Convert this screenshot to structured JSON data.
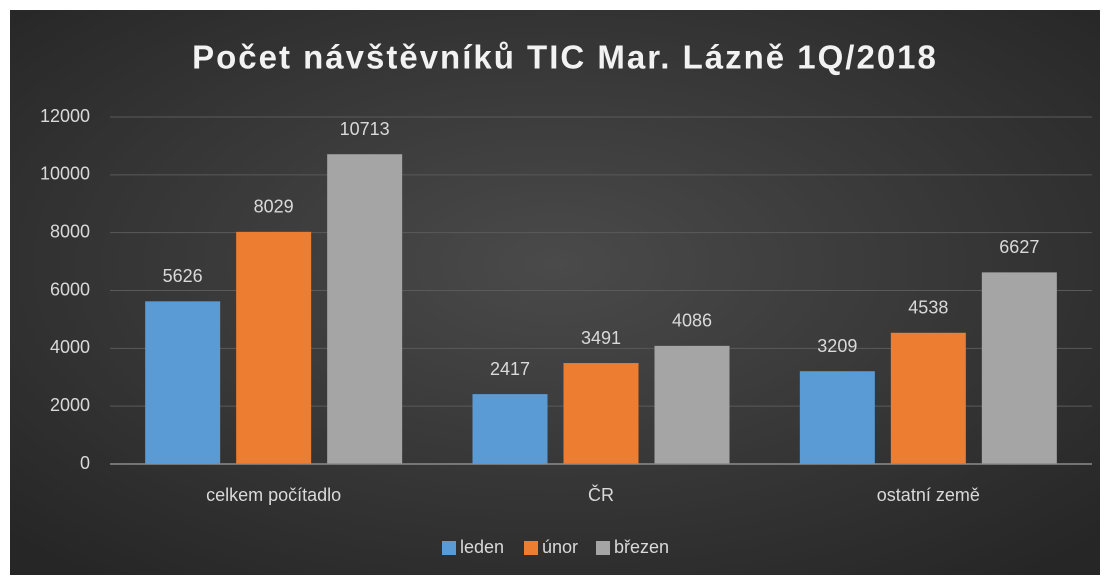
{
  "chart_data": {
    "type": "bar",
    "title": "Počet návštěvníků TIC Mar. Lázně 1Q/2018",
    "categories": [
      "celkem počítadlo",
      "ČR",
      "ostatní země"
    ],
    "series": [
      {
        "name": "leden",
        "color": "#5b9bd5",
        "values": [
          5626,
          2417,
          3209
        ]
      },
      {
        "name": "únor",
        "color": "#ed7d31",
        "values": [
          8029,
          3491,
          4538
        ]
      },
      {
        "name": "březen",
        "color": "#a5a5a5",
        "values": [
          10713,
          4086,
          6627
        ]
      }
    ],
    "ylim": [
      0,
      12000
    ],
    "yticks": [
      0,
      2000,
      4000,
      6000,
      8000,
      10000,
      12000
    ],
    "grid": true,
    "legend": "bottom"
  }
}
